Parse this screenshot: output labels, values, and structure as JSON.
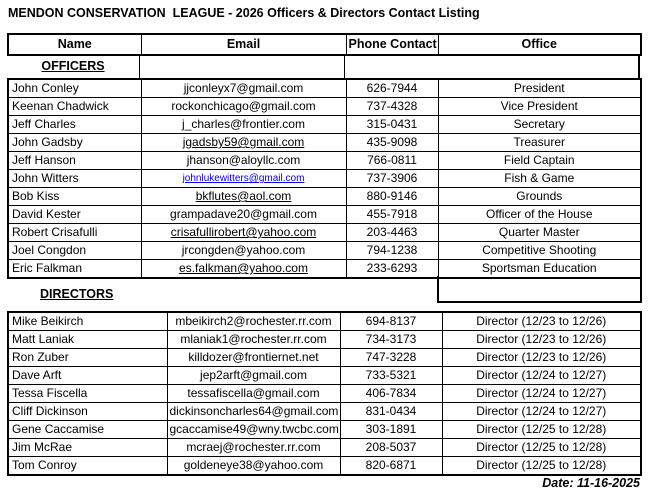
{
  "title": "MENDON CONSERVATION  LEAGUE - 2026 Officers & Directors Contact Listing",
  "table": {
    "headers": [
      "Name",
      "Email",
      "Phone Contact",
      "Office"
    ],
    "officers_label": "OFFICERS",
    "directors_label": "DIRECTORS",
    "officers": [
      {
        "name": "John Conley",
        "email": "jjconleyx7@gmail.com",
        "phone": "626-7944",
        "office": "President",
        "email_style": "plain"
      },
      {
        "name": "Keenan Chadwick",
        "email": "rockonchicago@gmail.com",
        "phone": "737-4328",
        "office": "Vice President",
        "email_style": "plain"
      },
      {
        "name": "Jeff Charles",
        "email": "j_charles@frontier.com",
        "phone": "315-0431",
        "office": "Secretary",
        "email_style": "plain"
      },
      {
        "name": "John Gadsby",
        "email": "jgadsby59@gmail.com",
        "phone": "435-9098",
        "office": "Treasurer",
        "email_style": "underline"
      },
      {
        "name": "Jeff Hanson",
        "email": "jhanson@aloyllc.com",
        "phone": "766-0811",
        "office": "Field Captain",
        "email_style": "plain"
      },
      {
        "name": "John Witters",
        "email": "johnlukewitters@gmail.com",
        "phone": "737-3906",
        "office": "Fish & Game",
        "email_style": "link"
      },
      {
        "name": "Bob Kiss",
        "email": "bkflutes@aol.com",
        "phone": "880-9146",
        "office": "Grounds",
        "email_style": "underline"
      },
      {
        "name": "David Kester",
        "email": "grampadave20@gmail.com",
        "phone": "455-7918",
        "office": "Officer of the House",
        "email_style": "plain"
      },
      {
        "name": "Robert Crisafulli",
        "email": "crisafullirobert@yahoo.com",
        "phone": "203-4463",
        "office": "Quarter Master",
        "email_style": "underline"
      },
      {
        "name": "Joel Congdon",
        "email": "jrcongden@yahoo.com",
        "phone": "794-1238",
        "office": "Competitive Shooting",
        "email_style": "plain"
      },
      {
        "name": "Eric Falkman",
        "email": "es.falkman@yahoo.com",
        "phone": "233-6293",
        "office": "Sportsman Education",
        "email_style": "underline"
      }
    ],
    "directors": [
      {
        "name": "Mike Beikirch",
        "email": "mbeikirch2@rochester.rr.com",
        "phone": "694-8137",
        "office": "Director (12/23 to 12/26)"
      },
      {
        "name": "Matt Laniak",
        "email": "mlaniak1@rochester.rr.com",
        "phone": "734-3173",
        "office": "Director (12/23 to 12/26)"
      },
      {
        "name": "Ron Zuber",
        "email": "killdozer@frontiernet.net",
        "phone": "747-3228",
        "office": "Director (12/23 to 12/26)"
      },
      {
        "name": "Dave Arft",
        "email": "jep2arft@gmail.com",
        "phone": "733-5321",
        "office": "Director (12/24 to 12/27)"
      },
      {
        "name": "Tessa Fiscella",
        "email": "tessafiscella@gmail.com",
        "phone": "406-7834",
        "office": "Director (12/24 to 12/27)"
      },
      {
        "name": "Cliff Dickinson",
        "email": "dickinsoncharles64@gmail.com",
        "phone": "831-0434",
        "office": "Director (12/24 to 12/27)"
      },
      {
        "name": "Gene Caccamise",
        "email": "gcaccamise49@wny.twcbc.com",
        "phone": "303-1891",
        "office": "Director (12/25 to 12/28)"
      },
      {
        "name": "Jim McRae",
        "email": "mcraej@rochester.rr.com",
        "phone": "208-5037",
        "office": "Director (12/25 to 12/28)"
      },
      {
        "name": "Tom Conroy",
        "email": "goldeneye38@yahoo.com",
        "phone": "820-6871",
        "office": "Director (12/25 to 12/28)"
      }
    ]
  },
  "footer": {
    "date_label": "Date: 11-16-2025"
  },
  "colors": {
    "text": "#000000",
    "border": "#000000",
    "background": "#FFFFFF",
    "hyperlink": "#0000EE"
  }
}
